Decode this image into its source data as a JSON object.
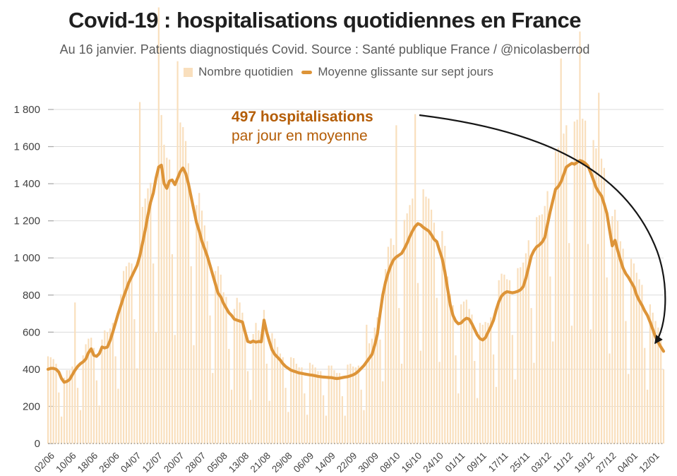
{
  "header": {
    "title": "Covid-19 : hospitalisations quotidiennes en France",
    "subtitle": "Au 16 janvier. Patients diagnostiqués Covid. Source : Santé publique France / @nicolasberrod",
    "legend": [
      {
        "swatch": "bar",
        "label": "Nombre quotidien"
      },
      {
        "swatch": "line",
        "label": "Moyenne glissante sur sept jours"
      }
    ]
  },
  "annotation": {
    "line1": "497 hospitalisations",
    "line2": "par jour en moyenne"
  },
  "colors": {
    "bar": "#F9DFBD",
    "line": "#DD9438",
    "annotation": "#B45D07",
    "arrow": "#161616",
    "grid": "#DBDBDB",
    "tick": "#ADADAD",
    "baseline": "#A89F93",
    "axis_text": "#3F3F3F",
    "title_text": "#1F1F1F",
    "subtitle_text": "#5B5B5B"
  },
  "chart_data": {
    "type": "bar+line",
    "title": "Covid-19 : hospitalisations quotidiennes en France",
    "x_unit": "one value per day, from 02/06 (2020) to 16/01 (2021), 229 days",
    "x_tick_labels": [
      "02/06",
      "10/06",
      "18/06",
      "26/06",
      "04/07",
      "12/07",
      "20/07",
      "28/07",
      "05/08",
      "13/08",
      "21/08",
      "29/08",
      "06/09",
      "14/09",
      "22/09",
      "30/09",
      "08/10",
      "16/10",
      "24/10",
      "01/11",
      "09/11",
      "17/11",
      "25/11",
      "03/12",
      "11/12",
      "19/12",
      "27/12",
      "04/01",
      "12/01"
    ],
    "x_tick_day_indices": [
      0,
      8,
      16,
      24,
      32,
      40,
      48,
      56,
      64,
      72,
      80,
      88,
      96,
      104,
      112,
      120,
      128,
      136,
      144,
      152,
      160,
      168,
      176,
      184,
      192,
      200,
      208,
      216,
      224
    ],
    "y_ticks": [
      0,
      200,
      400,
      600,
      800,
      1000,
      1200,
      1400,
      1600,
      1800
    ],
    "y_tick_labels": [
      "0",
      "200",
      "400",
      "600",
      "800",
      "1 000",
      "1 200",
      "1 400",
      "1 600",
      "1 800"
    ],
    "ylim": [
      0,
      1800
    ],
    "grid": true,
    "legend_position": "top",
    "end_label_value": 497,
    "series": [
      {
        "name": "Nombre quotidien",
        "type": "bar",
        "values": [
          470,
          465,
          455,
          430,
          275,
          145,
          355,
          395,
          395,
          415,
          760,
          300,
          180,
          475,
          535,
          565,
          570,
          515,
          340,
          205,
          560,
          610,
          600,
          620,
          650,
          470,
          295,
          805,
          930,
          955,
          975,
          970,
          670,
          405,
          1840,
          1275,
          1320,
          1375,
          1405,
          970,
          600,
          2350,
          1770,
          1610,
          1540,
          1530,
          1020,
          585,
          2060,
          1730,
          1705,
          1630,
          1510,
          955,
          530,
          1285,
          1350,
          1255,
          1175,
          1090,
          690,
          380,
          930,
          955,
          910,
          815,
          790,
          510,
          290,
          725,
          785,
          760,
          705,
          605,
          390,
          235,
          590,
          650,
          610,
          590,
          720,
          430,
          230,
          595,
          565,
          520,
          485,
          465,
          300,
          170,
          465,
          460,
          430,
          410,
          410,
          270,
          155,
          435,
          425,
          410,
          390,
          390,
          260,
          150,
          420,
          420,
          395,
          380,
          380,
          255,
          150,
          425,
          430,
          415,
          410,
          420,
          290,
          180,
          640,
          540,
          565,
          625,
          680,
          560,
          335,
          940,
          1060,
          1105,
          1070,
          1715,
          730,
          430,
          1205,
          1240,
          1285,
          1320,
          1775,
          865,
          500,
          1370,
          1330,
          1320,
          1260,
          1190,
          785,
          440,
          1145,
          1065,
          900,
          805,
          745,
          475,
          270,
          750,
          765,
          775,
          725,
          695,
          445,
          245,
          650,
          640,
          655,
          650,
          680,
          480,
          305,
          880,
          915,
          910,
          885,
          880,
          585,
          345,
          945,
          950,
          975,
          1025,
          1095,
          730,
          435,
          1220,
          1230,
          1235,
          1280,
          1360,
          900,
          550,
          1575,
          1595,
          2075,
          1670,
          1715,
          1080,
          635,
          1735,
          1745,
          2220,
          1750,
          1740,
          1075,
          615,
          1635,
          1590,
          1890,
          1535,
          1485,
          895,
          485,
          1225,
          1260,
          1200,
          1090,
          1050,
          660,
          375,
          995,
          970,
          920,
          885,
          855,
          515,
          290,
          750,
          705,
          660,
          625,
          560,
          400
        ]
      },
      {
        "name": "Moyenne glissante sur sept jours",
        "type": "line",
        "values": [
          400,
          405,
          405,
          400,
          385,
          350,
          330,
          335,
          345,
          370,
          395,
          415,
          430,
          440,
          455,
          490,
          510,
          475,
          470,
          485,
          520,
          515,
          520,
          555,
          600,
          650,
          700,
          745,
          790,
          830,
          870,
          900,
          930,
          960,
          1010,
          1080,
          1150,
          1230,
          1300,
          1350,
          1430,
          1490,
          1500,
          1400,
          1375,
          1415,
          1420,
          1395,
          1430,
          1465,
          1485,
          1455,
          1400,
          1330,
          1260,
          1190,
          1145,
          1090,
          1050,
          1010,
          960,
          910,
          860,
          810,
          790,
          755,
          730,
          705,
          690,
          670,
          665,
          660,
          655,
          600,
          550,
          545,
          552,
          546,
          550,
          548,
          665,
          600,
          550,
          505,
          480,
          465,
          450,
          430,
          415,
          405,
          395,
          390,
          385,
          380,
          378,
          375,
          372,
          370,
          368,
          365,
          362,
          360,
          358,
          357,
          356,
          355,
          352,
          350,
          352,
          355,
          358,
          360,
          365,
          370,
          378,
          390,
          405,
          420,
          440,
          460,
          480,
          530,
          590,
          700,
          800,
          870,
          920,
          960,
          990,
          1005,
          1015,
          1025,
          1050,
          1080,
          1115,
          1145,
          1170,
          1185,
          1178,
          1165,
          1155,
          1145,
          1125,
          1100,
          1088,
          1040,
          995,
          925,
          835,
          745,
          690,
          660,
          645,
          650,
          665,
          675,
          670,
          645,
          615,
          585,
          565,
          558,
          570,
          600,
          630,
          665,
          720,
          765,
          795,
          810,
          818,
          815,
          812,
          815,
          820,
          828,
          845,
          890,
          950,
          1010,
          1040,
          1060,
          1070,
          1085,
          1110,
          1180,
          1250,
          1310,
          1370,
          1385,
          1410,
          1450,
          1490,
          1500,
          1510,
          1505,
          1515,
          1525,
          1520,
          1510,
          1495,
          1460,
          1420,
          1380,
          1355,
          1335,
          1290,
          1240,
          1150,
          1065,
          1095,
          1040,
          990,
          945,
          915,
          895,
          870,
          845,
          800,
          770,
          745,
          715,
          690,
          655,
          615,
          575,
          545,
          520,
          497
        ]
      }
    ]
  }
}
